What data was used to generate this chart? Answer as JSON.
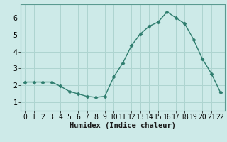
{
  "x": [
    0,
    1,
    2,
    3,
    4,
    5,
    6,
    7,
    8,
    9,
    10,
    11,
    12,
    13,
    14,
    15,
    16,
    17,
    18,
    19,
    20,
    21,
    22
  ],
  "y": [
    2.2,
    2.2,
    2.2,
    2.2,
    1.95,
    1.65,
    1.5,
    1.35,
    1.3,
    1.35,
    2.5,
    3.3,
    4.35,
    5.05,
    5.5,
    5.75,
    6.35,
    6.0,
    5.65,
    4.7,
    3.55,
    2.7,
    1.6
  ],
  "line_color": "#2e7d6e",
  "marker": "D",
  "marker_size": 2.5,
  "line_width": 1.0,
  "bg_color": "#cdeae8",
  "grid_color": "#aed4d0",
  "xlabel": "Humidex (Indice chaleur)",
  "xlabel_fontsize": 7.5,
  "tick_fontsize": 7,
  "ylim": [
    0.5,
    6.8
  ],
  "xlim": [
    -0.5,
    22.5
  ],
  "yticks": [
    1,
    2,
    3,
    4,
    5,
    6
  ],
  "xticks": [
    0,
    1,
    2,
    3,
    4,
    5,
    6,
    7,
    8,
    9,
    10,
    11,
    12,
    13,
    14,
    15,
    16,
    17,
    18,
    19,
    20,
    21,
    22
  ],
  "spine_color": "#5a9a90"
}
